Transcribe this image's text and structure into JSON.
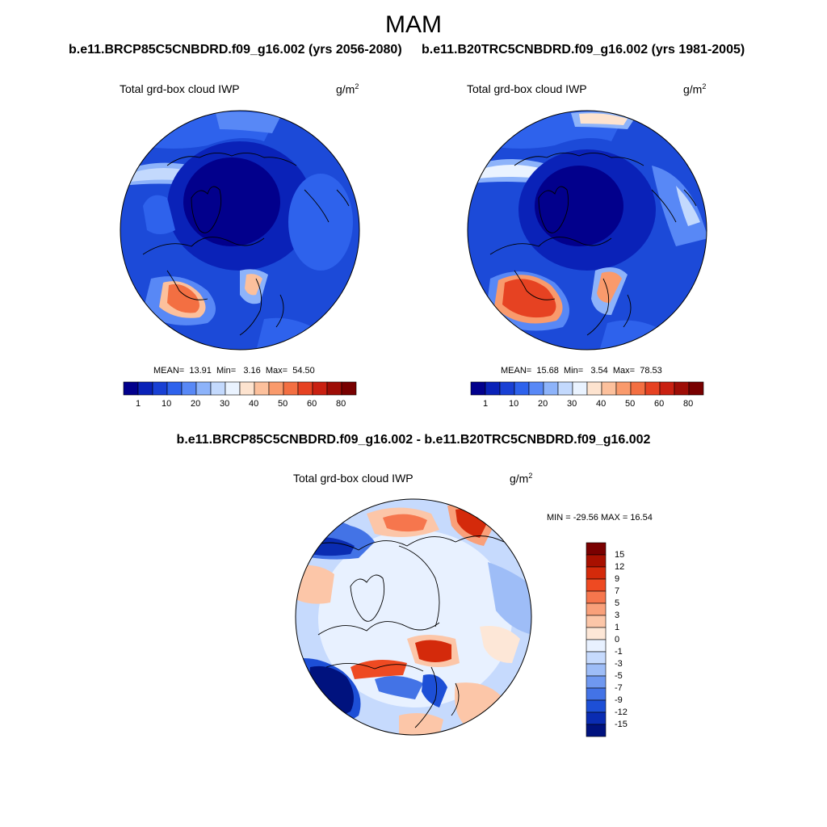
{
  "header": {
    "season": "MAM",
    "case_left": "b.e11.BRCP85C5CNBDRD.f09_g16.002 (yrs 2056-2080)",
    "case_right": "b.e11.B20TRC5CNBDRD.f09_g16.002 (yrs 1981-2005)",
    "diff_title": "b.e11.BRCP85C5CNBDRD.f09_g16.002 - b.e11.B20TRC5CNBDRD.f09_g16.002"
  },
  "panels": {
    "left": {
      "variable": "Total grd-box cloud IWP",
      "unit_base": "g/m",
      "unit_exp": "2",
      "stats": {
        "mean_label": "MEAN=",
        "mean": "13.91",
        "min_label": "Min=",
        "min": "3.16",
        "max_label": "Max=",
        "max": "54.50"
      }
    },
    "right": {
      "variable": "Total grd-box cloud IWP",
      "unit_base": "g/m",
      "unit_exp": "2",
      "stats": {
        "mean_label": "MEAN=",
        "mean": "15.68",
        "min_label": "Min=",
        "min": "3.54",
        "max_label": "Max=",
        "max": "78.53"
      }
    },
    "diff": {
      "variable": "Total grd-box cloud IWP",
      "unit_base": "g/m",
      "unit_exp": "2",
      "minmax": "MIN = -29.56 MAX =  16.54"
    }
  },
  "colorbar_abs": {
    "ticks": [
      "1",
      "10",
      "20",
      "30",
      "40",
      "50",
      "60",
      "80"
    ],
    "colors": [
      "#02008c",
      "#0a22b8",
      "#1940d4",
      "#2e62ec",
      "#5888f6",
      "#8db3fa",
      "#c3d9fd",
      "#eaf3ff",
      "#fde3cf",
      "#fcc09c",
      "#f99a6c",
      "#f36f42",
      "#e64222",
      "#c92011",
      "#9e0d06",
      "#780000"
    ]
  },
  "colorbar_diff": {
    "ticks": [
      "15",
      "12",
      "9",
      "7",
      "5",
      "3",
      "1",
      "0",
      "-1",
      "-3",
      "-5",
      "-7",
      "-9",
      "-12",
      "-15"
    ],
    "colors": [
      "#7a0000",
      "#a81000",
      "#d42a0b",
      "#ee4a22",
      "#f6764d",
      "#f9a07a",
      "#fcc6a8",
      "#fde7d7",
      "#e8f1ff",
      "#c6dafd",
      "#9ebdf7",
      "#6f98f0",
      "#4373e6",
      "#1d4fd6",
      "#0a2cb2",
      "#00127e"
    ]
  }
}
